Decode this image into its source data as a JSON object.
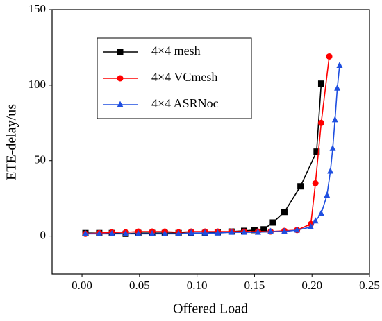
{
  "chart_data": {
    "type": "line",
    "xlabel": "Offered Load",
    "ylabel": "ETE-delay/us",
    "xlim": [
      -0.026,
      0.25
    ],
    "xticks": [
      {
        "value": 0,
        "label": "0.00"
      },
      {
        "value": 0.05,
        "label": "0.05"
      },
      {
        "value": 0.1,
        "label": "0.10"
      },
      {
        "value": 0.15,
        "label": "0.15"
      },
      {
        "value": 0.2,
        "label": "0.20"
      },
      {
        "value": 0.25,
        "label": "0.25"
      }
    ],
    "ylim": [
      -25,
      150
    ],
    "yticks": [
      0,
      50,
      100,
      150
    ],
    "legend": "upper left",
    "series": [
      {
        "name": "4×4 mesh",
        "color": "#000000",
        "marker": "square",
        "x": [
          0.003,
          0.015,
          0.026,
          0.038,
          0.049,
          0.061,
          0.072,
          0.084,
          0.095,
          0.107,
          0.118,
          0.13,
          0.141,
          0.15,
          0.158,
          0.166,
          0.176,
          0.19,
          0.204,
          0.208
        ],
        "values": [
          2,
          2,
          2,
          1.5,
          2,
          2,
          2,
          2,
          2,
          2,
          2.5,
          3,
          3.5,
          4,
          4.5,
          9,
          16,
          33,
          56,
          101
        ]
      },
      {
        "name": "4×4 VCmesh",
        "color": "#ff0000",
        "marker": "circle",
        "x": [
          0.003,
          0.015,
          0.026,
          0.038,
          0.049,
          0.061,
          0.072,
          0.084,
          0.095,
          0.107,
          0.118,
          0.13,
          0.141,
          0.153,
          0.164,
          0.176,
          0.187,
          0.199,
          0.203,
          0.208,
          0.215
        ],
        "values": [
          1.5,
          2,
          2.5,
          2.5,
          3,
          3,
          3,
          2.5,
          3,
          3,
          3,
          3,
          3,
          3,
          3,
          3.5,
          4,
          8,
          35,
          75,
          119
        ]
      },
      {
        "name": "4×4 ASRNoc",
        "color": "#1f4fe0",
        "marker": "triangle",
        "x": [
          0.003,
          0.015,
          0.026,
          0.038,
          0.049,
          0.061,
          0.072,
          0.084,
          0.095,
          0.107,
          0.118,
          0.13,
          0.141,
          0.153,
          0.164,
          0.176,
          0.187,
          0.199,
          0.203,
          0.208,
          0.213,
          0.216,
          0.218,
          0.22,
          0.222,
          0.224
        ],
        "values": [
          1.5,
          1.5,
          1.5,
          1.5,
          1.5,
          1.5,
          1.5,
          1.5,
          2,
          2,
          2,
          2.5,
          2.5,
          2.5,
          3,
          3,
          4,
          6,
          10,
          15,
          27,
          43,
          58,
          77,
          98,
          113
        ]
      }
    ]
  }
}
